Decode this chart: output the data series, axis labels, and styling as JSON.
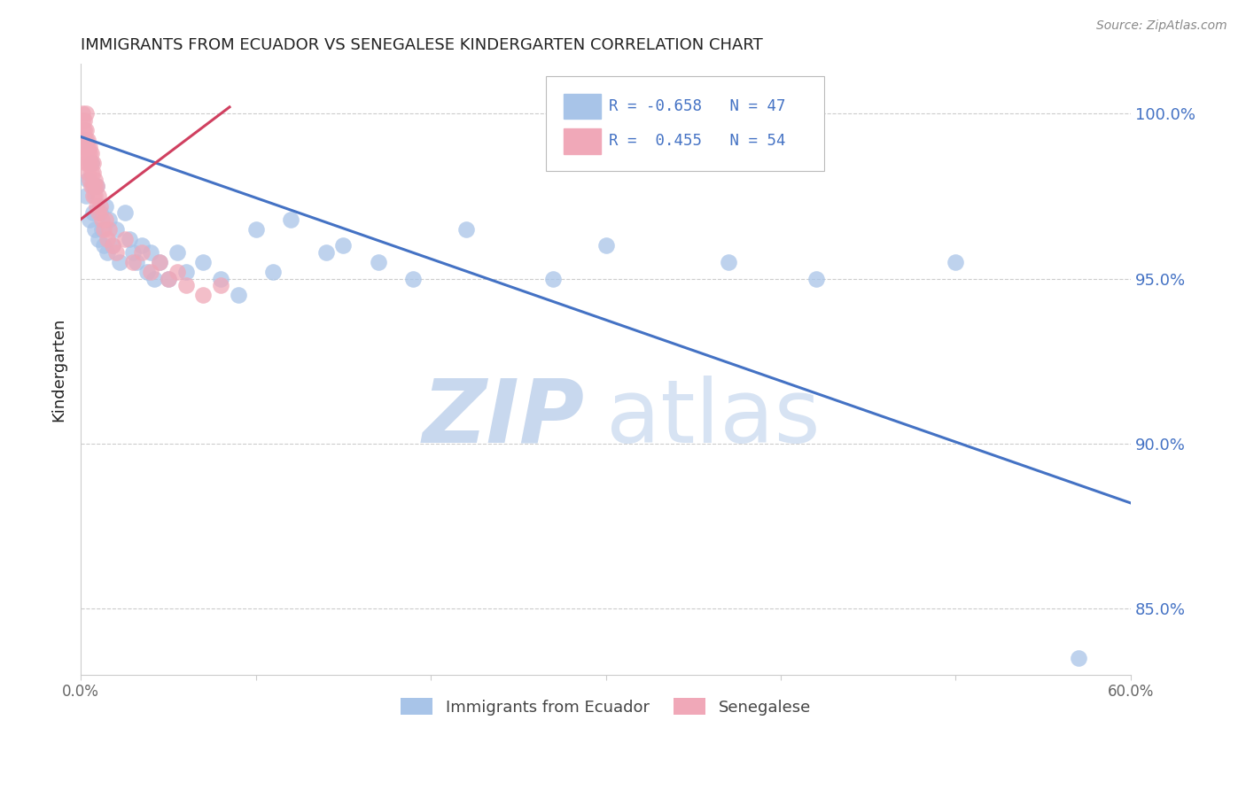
{
  "title": "IMMIGRANTS FROM ECUADOR VS SENEGALESE KINDERGARTEN CORRELATION CHART",
  "source": "Source: ZipAtlas.com",
  "ylabel": "Kindergarten",
  "xlim": [
    0.0,
    0.6
  ],
  "ylim": [
    83.0,
    101.5
  ],
  "legend_blue_r": "-0.658",
  "legend_blue_n": "47",
  "legend_pink_r": "0.455",
  "legend_pink_n": "54",
  "blue_color": "#a8c4e8",
  "pink_color": "#f0a8b8",
  "blue_line_color": "#4472c4",
  "pink_line_color": "#d04060",
  "watermark_zip": "ZIP",
  "watermark_atlas": "atlas",
  "grid_color": "#cccccc",
  "axis_color": "#cccccc",
  "tick_label_color": "#4472c4",
  "title_color": "#222222",
  "ylabel_color": "#222222",
  "blue_scatter_x": [
    0.002,
    0.003,
    0.004,
    0.005,
    0.006,
    0.007,
    0.008,
    0.009,
    0.01,
    0.011,
    0.012,
    0.013,
    0.014,
    0.015,
    0.016,
    0.018,
    0.02,
    0.022,
    0.025,
    0.028,
    0.03,
    0.032,
    0.035,
    0.038,
    0.04,
    0.042,
    0.045,
    0.05,
    0.055,
    0.06,
    0.07,
    0.08,
    0.09,
    0.1,
    0.11,
    0.12,
    0.14,
    0.15,
    0.17,
    0.19,
    0.22,
    0.27,
    0.3,
    0.37,
    0.42,
    0.5,
    0.57
  ],
  "blue_scatter_y": [
    99.2,
    97.5,
    98.0,
    96.8,
    98.5,
    97.0,
    96.5,
    97.8,
    96.2,
    97.0,
    96.5,
    96.0,
    97.2,
    95.8,
    96.8,
    96.0,
    96.5,
    95.5,
    97.0,
    96.2,
    95.8,
    95.5,
    96.0,
    95.2,
    95.8,
    95.0,
    95.5,
    95.0,
    95.8,
    95.2,
    95.5,
    95.0,
    94.5,
    96.5,
    95.2,
    96.8,
    95.8,
    96.0,
    95.5,
    95.0,
    96.5,
    95.0,
    96.0,
    95.5,
    95.0,
    95.5,
    83.5
  ],
  "pink_scatter_x": [
    0.001,
    0.001,
    0.001,
    0.002,
    0.002,
    0.002,
    0.002,
    0.003,
    0.003,
    0.003,
    0.003,
    0.003,
    0.004,
    0.004,
    0.004,
    0.004,
    0.004,
    0.005,
    0.005,
    0.005,
    0.005,
    0.006,
    0.006,
    0.006,
    0.006,
    0.007,
    0.007,
    0.007,
    0.007,
    0.008,
    0.008,
    0.008,
    0.009,
    0.009,
    0.01,
    0.01,
    0.011,
    0.012,
    0.013,
    0.014,
    0.015,
    0.016,
    0.018,
    0.02,
    0.025,
    0.03,
    0.035,
    0.04,
    0.045,
    0.05,
    0.055,
    0.06,
    0.07,
    0.08
  ],
  "pink_scatter_y": [
    100.0,
    99.8,
    99.5,
    99.8,
    99.5,
    99.2,
    99.0,
    99.5,
    99.2,
    98.8,
    98.5,
    100.0,
    99.0,
    98.8,
    98.5,
    98.2,
    99.2,
    99.0,
    98.8,
    98.5,
    98.0,
    98.8,
    98.5,
    98.2,
    97.8,
    98.5,
    98.2,
    97.8,
    97.5,
    98.0,
    97.8,
    97.5,
    97.8,
    97.2,
    97.5,
    97.0,
    97.2,
    96.8,
    96.5,
    96.8,
    96.2,
    96.5,
    96.0,
    95.8,
    96.2,
    95.5,
    95.8,
    95.2,
    95.5,
    95.0,
    95.2,
    94.8,
    94.5,
    94.8
  ],
  "blue_trend_x": [
    0.0,
    0.6
  ],
  "blue_trend_y": [
    99.3,
    88.2
  ],
  "pink_trend_x": [
    0.0,
    0.085
  ],
  "pink_trend_y": [
    96.8,
    100.2
  ],
  "y_ticks": [
    85,
    90,
    95,
    100
  ],
  "y_tick_labels": [
    "85.0%",
    "90.0%",
    "95.0%",
    "100.0%"
  ],
  "x_ticks": [
    0.0,
    0.1,
    0.2,
    0.3,
    0.4,
    0.5,
    0.6
  ],
  "x_tick_labels": [
    "0.0%",
    "",
    "",
    "",
    "",
    "",
    "60.0%"
  ]
}
